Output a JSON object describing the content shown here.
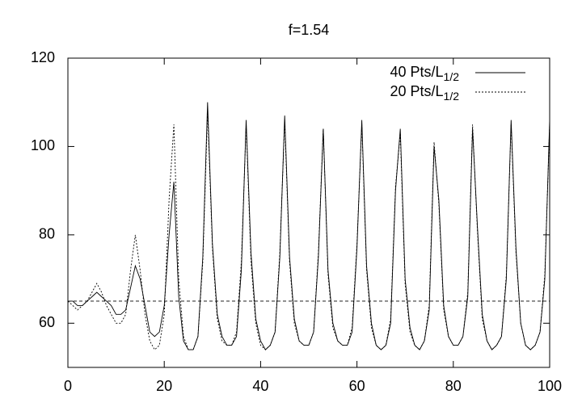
{
  "chart_data": {
    "type": "line",
    "title": "f=1.54",
    "x": [
      0,
      1,
      2,
      3,
      4,
      5,
      6,
      7,
      8,
      9,
      10,
      11,
      12,
      13,
      14,
      15,
      16,
      17,
      18,
      19,
      20,
      21,
      22,
      23,
      24,
      25,
      26,
      27,
      28,
      29,
      30,
      31,
      32,
      33,
      34,
      35,
      36,
      37,
      38,
      39,
      40,
      41,
      42,
      43,
      44,
      45,
      46,
      47,
      48,
      49,
      50,
      51,
      52,
      53,
      54,
      55,
      56,
      57,
      58,
      59,
      60,
      61,
      62,
      63,
      64,
      65,
      66,
      67,
      68,
      69,
      70,
      71,
      72,
      73,
      74,
      75,
      76,
      77,
      78,
      79,
      80,
      81,
      82,
      83,
      84,
      85,
      86,
      87,
      88,
      89,
      90,
      91,
      92,
      93,
      94,
      95,
      96,
      97,
      98,
      99,
      100
    ],
    "series": [
      {
        "name": "40 Pts/L",
        "name_subscript": "1/2",
        "color": "#000000",
        "dash": "none",
        "values": [
          65,
          65,
          64,
          64,
          65,
          66,
          67,
          66,
          65,
          64,
          62,
          62,
          63,
          68,
          73,
          70,
          64,
          58,
          57,
          58,
          64,
          80,
          92,
          66,
          56,
          54,
          54,
          57,
          75,
          110,
          78,
          62,
          57,
          55,
          55,
          57,
          72,
          106,
          76,
          61,
          56,
          54,
          55,
          58,
          75,
          107,
          75,
          61,
          56,
          55,
          55,
          58,
          75,
          104,
          72,
          60,
          56,
          55,
          55,
          58,
          77,
          106,
          73,
          60,
          55,
          54,
          55,
          60,
          90,
          104,
          70,
          59,
          55,
          54,
          56,
          63,
          100,
          88,
          64,
          57,
          55,
          55,
          57,
          66,
          104,
          82,
          62,
          56,
          54,
          55,
          57,
          70,
          106,
          77,
          60,
          55,
          54,
          55,
          58,
          70,
          106
        ]
      },
      {
        "name": "20 Pts/L",
        "name_subscript": "1/2",
        "color": "#000000",
        "dash": "2,2",
        "values": [
          65,
          64,
          63,
          64,
          65,
          67,
          69,
          67,
          64,
          62,
          60,
          60,
          62,
          72,
          80,
          72,
          62,
          56,
          54,
          55,
          62,
          88,
          105,
          70,
          57,
          54,
          54,
          57,
          74,
          108,
          77,
          61,
          56,
          55,
          55,
          58,
          74,
          105,
          74,
          60,
          55,
          54,
          55,
          58,
          76,
          106,
          74,
          60,
          56,
          55,
          55,
          58,
          76,
          104,
          71,
          59,
          56,
          55,
          55,
          59,
          78,
          105,
          72,
          59,
          55,
          54,
          55,
          61,
          91,
          103,
          69,
          58,
          55,
          54,
          56,
          64,
          101,
          87,
          63,
          57,
          55,
          55,
          57,
          67,
          105,
          81,
          61,
          56,
          54,
          55,
          57,
          71,
          105,
          76,
          60,
          55,
          54,
          55,
          58,
          71,
          105
        ]
      }
    ],
    "reference_line": 65,
    "xlim": [
      0,
      100
    ],
    "xticks": [
      0,
      20,
      40,
      60,
      80,
      100
    ],
    "ylim": [
      50,
      120
    ],
    "yticks": [
      60,
      80,
      100,
      120
    ],
    "legend": "upper-right"
  }
}
